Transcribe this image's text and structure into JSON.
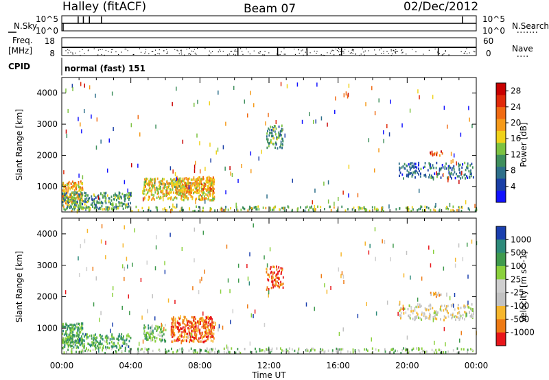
{
  "header": {
    "station": "Halley (fitACF)",
    "beam": "Beam 07",
    "date": "02/Dec/2012"
  },
  "panels": {
    "nsky_label": "N.Sky",
    "nsearch_label": "N.Search",
    "nsky_ticks": [
      "10^5",
      "10^0"
    ],
    "nsearch_ticks": [
      "10^5",
      "10^0"
    ],
    "freq_label_1": "Freq.",
    "freq_label_2": "[MHz]",
    "freq_ticks": [
      "18",
      "8"
    ],
    "nave_label": "Nave",
    "nave_ticks": [
      "60",
      "0"
    ],
    "cpid_label": "CPID",
    "cpid_value": "normal (fast) 151"
  },
  "colors": {
    "power": [
      "#1212ff",
      "#1a3fa6",
      "#2d6f8a",
      "#3f8f5d",
      "#7cc241",
      "#f0d21a",
      "#f59a1a",
      "#f06a12",
      "#e02a0a",
      "#c80000"
    ],
    "velocity": [
      "#e8161a",
      "#ee7a14",
      "#f6b62c",
      "#c2c2c2",
      "#cfcfcf",
      "#8ad03c",
      "#3f9a4d",
      "#2d8a7a",
      "#1a3fae"
    ]
  },
  "chart_data": [
    {
      "type": "heatmap",
      "name_text": "Power",
      "xlabel": "",
      "ylabel": "Slant Range [km]",
      "x_ticks": [
        "00:00",
        "04:00",
        "08:00",
        "12:00",
        "16:00",
        "20:00",
        "00:00"
      ],
      "y_ticks": [
        1000,
        2000,
        3000,
        4000
      ],
      "ylim": [
        180,
        4500
      ],
      "colorbar_label": "Power [dB]",
      "colorbar_ticks": [
        4,
        8,
        12,
        16,
        20,
        24,
        28
      ],
      "colorbar_range": [
        0,
        30
      ],
      "scatter_regions": [
        {
          "t0": 0.0,
          "t1": 1.2,
          "r0": 450,
          "r1": 1150,
          "level": 0.62,
          "density": 0.85
        },
        {
          "t0": 0.0,
          "t1": 4.0,
          "r0": 250,
          "r1": 800,
          "level": 0.35,
          "density": 0.55
        },
        {
          "t0": 4.7,
          "t1": 8.8,
          "r0": 550,
          "r1": 1250,
          "level": 0.55,
          "density": 0.7
        },
        {
          "t0": 6.5,
          "t1": 8.8,
          "r0": 800,
          "r1": 1300,
          "level": 0.65,
          "density": 0.6
        },
        {
          "t0": 11.8,
          "t1": 12.8,
          "r0": 2200,
          "r1": 2950,
          "level": 0.35,
          "density": 0.45
        },
        {
          "t0": 19.5,
          "t1": 23.8,
          "r0": 1250,
          "r1": 1750,
          "level": 0.25,
          "density": 0.35
        },
        {
          "t0": 21.3,
          "t1": 22.0,
          "r0": 1980,
          "r1": 2120,
          "level": 0.8,
          "density": 0.7
        },
        {
          "t0": 0.0,
          "t1": 24.0,
          "r0": 200,
          "r1": 350,
          "level": 0.45,
          "density": 0.3
        }
      ]
    },
    {
      "type": "heatmap",
      "name_text": "Velocity",
      "xlabel": "Time UT",
      "ylabel": "Slant Range [km]",
      "x_ticks": [
        "00:00",
        "04:00",
        "08:00",
        "12:00",
        "16:00",
        "20:00",
        "00:00"
      ],
      "y_ticks": [
        1000,
        2000,
        3000,
        4000
      ],
      "ylim": [
        180,
        4500
      ],
      "colorbar_label": "Velocity [m s^-1]",
      "colorbar_ticks": [
        "1000",
        "500",
        "100",
        "25",
        "-25",
        "-100",
        "-500",
        "-1000"
      ],
      "scatter_regions": [
        {
          "t0": 0.0,
          "t1": 1.2,
          "r0": 450,
          "r1": 1150,
          "level": 0.7,
          "density": 0.8
        },
        {
          "t0": 0.0,
          "t1": 4.0,
          "r0": 350,
          "r1": 800,
          "level": 0.72,
          "density": 0.5
        },
        {
          "t0": 4.7,
          "t1": 6.0,
          "r0": 550,
          "r1": 1100,
          "level": 0.65,
          "density": 0.55
        },
        {
          "t0": 6.3,
          "t1": 8.8,
          "r0": 550,
          "r1": 1350,
          "level": 0.15,
          "density": 0.75
        },
        {
          "t0": 11.8,
          "t1": 12.8,
          "r0": 2200,
          "r1": 2950,
          "level": 0.1,
          "density": 0.45
        },
        {
          "t0": 19.5,
          "t1": 23.8,
          "r0": 1250,
          "r1": 1750,
          "level": 0.42,
          "density": 0.35
        },
        {
          "t0": 21.3,
          "t1": 22.0,
          "r0": 1980,
          "r1": 2120,
          "level": 0.3,
          "density": 0.6
        },
        {
          "t0": 0.0,
          "t1": 24.0,
          "r0": 200,
          "r1": 350,
          "level": 0.6,
          "density": 0.3
        }
      ]
    }
  ]
}
